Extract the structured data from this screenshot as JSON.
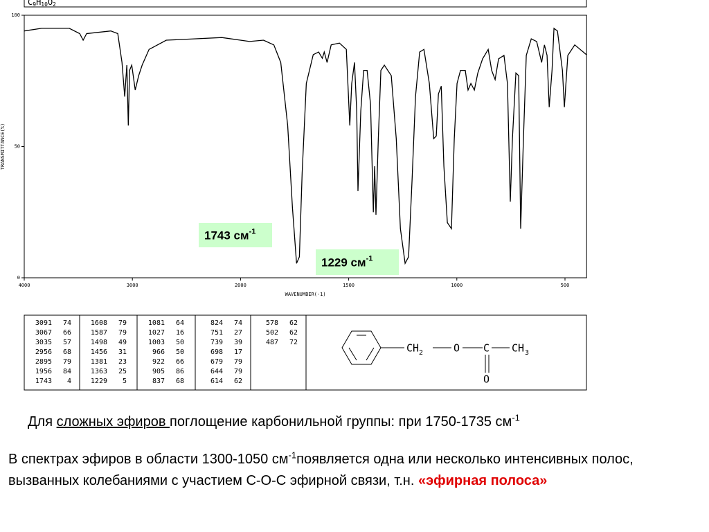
{
  "chart_data": {
    "type": "line",
    "title": {
      "base": "C",
      "sub1": "9",
      "mid": "H",
      "sub2": "10",
      "end": "O",
      "sub3": "2"
    },
    "x_label": "WAVENUMBER(-1)",
    "y_label": "TRANSMITTANCE(%)",
    "x": [
      4000,
      3840,
      3583,
      3487,
      3455,
      3423,
      3200,
      3135,
      3096,
      3071,
      3051,
      3038,
      3026,
      3006,
      2974,
      2942,
      2910,
      2846,
      2686,
      2429,
      2173,
      1958,
      1894,
      1846,
      1814,
      1782,
      1760,
      1741,
      1728,
      1715,
      1696,
      1664,
      1639,
      1622,
      1613,
      1600,
      1581,
      1543,
      1511,
      1495,
      1486,
      1473,
      1463,
      1457,
      1444,
      1431,
      1415,
      1399,
      1386,
      1380,
      1374,
      1363,
      1351,
      1335,
      1303,
      1280,
      1261,
      1239,
      1223,
      1207,
      1191,
      1172,
      1152,
      1127,
      1107,
      1095,
      1085,
      1072,
      1060,
      1044,
      1025,
      1012,
      999,
      983,
      961,
      948,
      935,
      919,
      903,
      881,
      855,
      839,
      823,
      807,
      782,
      766,
      753,
      743,
      727,
      714,
      705,
      692,
      679,
      656,
      631,
      608,
      595,
      583,
      573,
      560,
      551,
      535,
      512,
      503,
      487,
      455,
      401
    ],
    "values": [
      94,
      95,
      95,
      93,
      90.5,
      93,
      94,
      93,
      82,
      69,
      81,
      58,
      79,
      81,
      71.5,
      77,
      81,
      87,
      90.5,
      91,
      91.5,
      90,
      90.5,
      88.7,
      82,
      58,
      26.6,
      5.5,
      8,
      40,
      74,
      85,
      86,
      83.6,
      86,
      82,
      88.7,
      89.4,
      87,
      58,
      74,
      82,
      63.6,
      33,
      63.6,
      79,
      79,
      66,
      25,
      42.5,
      24,
      53,
      79,
      81,
      77,
      53,
      18.7,
      5.5,
      8,
      37,
      69,
      86,
      87,
      74,
      53,
      54,
      70,
      73,
      42.5,
      21,
      18.7,
      53,
      74,
      79,
      79,
      71.5,
      74,
      71.5,
      78,
      83.4,
      87,
      79,
      75.5,
      83.4,
      84.7,
      74,
      29,
      53,
      78,
      77,
      18.7,
      53,
      84.7,
      91,
      90,
      82,
      88.7,
      84.7,
      65,
      79,
      95,
      94,
      79,
      65,
      84.7,
      88.7,
      85
    ],
    "color": "#000000",
    "xlim": [
      4000,
      400
    ],
    "xticks": [
      4000,
      3000,
      2000,
      1500,
      1000,
      500
    ],
    "ylim": [
      0,
      100
    ],
    "yticks": [
      0,
      50,
      100
    ],
    "annotations": [
      {
        "text": "1743 см",
        "sup": "-1"
      },
      {
        "text": "1229 см",
        "sup": "-1"
      }
    ]
  },
  "peak_table": [
    [
      [
        3091,
        74
      ],
      [
        3067,
        66
      ],
      [
        3035,
        57
      ],
      [
        2956,
        68
      ],
      [
        2895,
        79
      ],
      [
        1956,
        84
      ],
      [
        1743,
        4
      ]
    ],
    [
      [
        1608,
        79
      ],
      [
        1587,
        79
      ],
      [
        1498,
        49
      ],
      [
        1456,
        31
      ],
      [
        1381,
        23
      ],
      [
        1363,
        25
      ],
      [
        1229,
        5
      ]
    ],
    [
      [
        1081,
        64
      ],
      [
        1027,
        16
      ],
      [
        1003,
        50
      ],
      [
        966,
        50
      ],
      [
        922,
        66
      ],
      [
        905,
        86
      ],
      [
        837,
        68
      ]
    ],
    [
      [
        824,
        74
      ],
      [
        751,
        27
      ],
      [
        739,
        39
      ],
      [
        698,
        17
      ],
      [
        679,
        79
      ],
      [
        644,
        79
      ],
      [
        614,
        62
      ]
    ],
    [
      [
        578,
        62
      ],
      [
        502,
        62
      ],
      [
        487,
        72
      ]
    ]
  ],
  "structure": {
    "ch2": "CH",
    "ch2_sub": "2",
    "o1": "O",
    "c": "C",
    "ch3": "CH",
    "ch3_sub": "3",
    "o2": "O"
  },
  "text": {
    "p1": {
      "a": "Для ",
      "underlined": "сложных эфиров ",
      "b": "поглощение карбонильной группы: при 1750-1735 см",
      "sup": "-1"
    },
    "p2": {
      "a": "В спектрах эфиров в области 1300-1050 см",
      "sup": "-1",
      "b": "появляется одна или несколько интенсивных полос, вызванных колебаниями с участием С-О-С эфирной связи, т.н. ",
      "highlight": "«эфирная полоса»"
    }
  }
}
